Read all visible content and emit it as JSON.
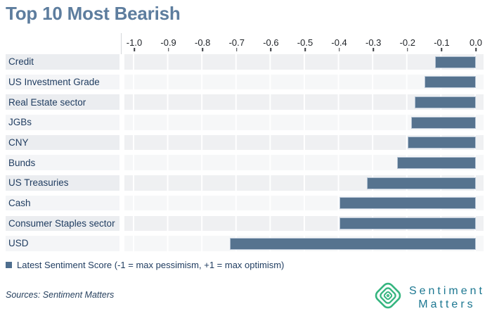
{
  "title": "Top 10 Most Bearish",
  "chart_data": {
    "type": "bar",
    "orientation": "horizontal",
    "title": "Top 10 Most Bearish",
    "categories": [
      "Credit",
      "US Investment Grade",
      "Real Estate sector",
      "JGBs",
      "CNY",
      "Bunds",
      "US Treasuries",
      "Cash",
      "Consumer Staples sector",
      "USD"
    ],
    "values": [
      -0.12,
      -0.15,
      -0.18,
      -0.19,
      -0.2,
      -0.23,
      -0.32,
      -0.4,
      -0.4,
      -0.72
    ],
    "series_name": "Latest Sentiment Score",
    "xlim": [
      -1.04,
      0.02
    ],
    "x_tick_labels": [
      "-1.0",
      "-0.9",
      "-0.8",
      "-0.7",
      "-0.6",
      "-0.5",
      "-0.4",
      "-0.3",
      "-0.2",
      "-0.1",
      "0.0"
    ],
    "x_tick_values": [
      -1.0,
      -0.9,
      -0.8,
      -0.7,
      -0.6,
      -0.5,
      -0.4,
      -0.3,
      -0.2,
      -0.1,
      0.0
    ],
    "grid": "vertical white gridlines on striped row bands",
    "legend_position": "bottom-left",
    "bar_color": "#56738f",
    "bar_border_color": "#b9c7d7"
  },
  "legend": {
    "label": "Latest Sentiment Score (-1 = max pessimism, +1 = max optimism)",
    "swatch_color": "#4e6e8e"
  },
  "footer": {
    "sources": "Sources: Sentiment Matters"
  },
  "logo": {
    "line1": "Sentiment",
    "line2": "Matters",
    "icon": "nested-diamond-icon",
    "icon_color": "#35b57f",
    "text_color": "#1c7791"
  },
  "colors": {
    "title_text": "#5d7d9e",
    "row_label_text": "#1e3b5f",
    "axis_tick_text": "#1f2328",
    "row_band_odd": "#ebedf0",
    "row_band_even": "#f4f5f7",
    "background": "#ffffff"
  }
}
